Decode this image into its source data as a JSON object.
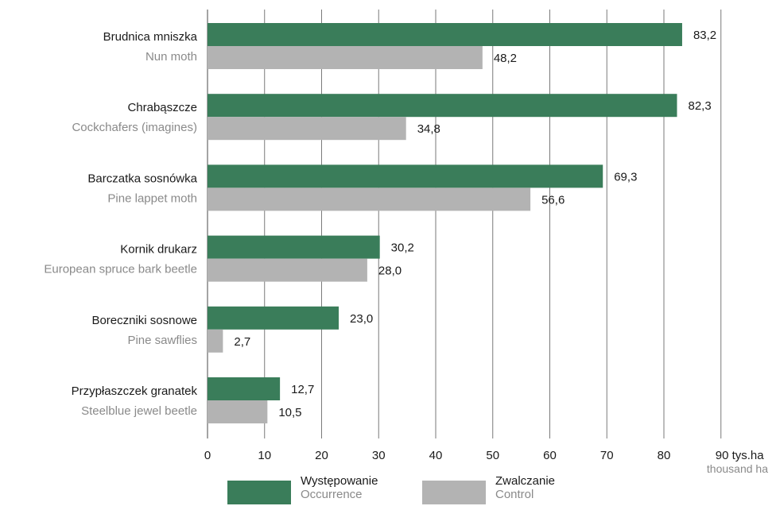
{
  "chart_data": {
    "type": "bar",
    "orientation": "horizontal",
    "categories": [
      {
        "pl": "Brudnica mniszka",
        "en": "Nun moth"
      },
      {
        "pl": "Chrabąszcze",
        "en": "Cockchafers (imagines)"
      },
      {
        "pl": "Barczatka sosnówka",
        "en": "Pine lappet moth"
      },
      {
        "pl": "Kornik drukarz",
        "en": "European spruce bark beetle"
      },
      {
        "pl": "Boreczniki sosnowe",
        "en": "Pine sawflies"
      },
      {
        "pl": "Przypłaszczek granatek",
        "en": "Steelblue jewel beetle"
      }
    ],
    "series": [
      {
        "name": "Występowanie",
        "name_en": "Occurrence",
        "color": "#3a7d5a",
        "values": [
          83.2,
          82.3,
          69.3,
          30.2,
          23.0,
          12.7
        ],
        "labels": [
          "83,2",
          "82,3",
          "69,3",
          "30,2",
          "23,0",
          "12,7"
        ]
      },
      {
        "name": "Zwalczanie",
        "name_en": "Control",
        "color": "#b3b3b3",
        "values": [
          48.2,
          34.8,
          56.6,
          28.0,
          2.7,
          10.5
        ],
        "labels": [
          "48,2",
          "34,8",
          "56,6",
          "28,0",
          "2,7",
          "10,5"
        ]
      }
    ],
    "xlim": [
      0,
      90
    ],
    "xticks": [
      0,
      10,
      20,
      30,
      40,
      50,
      60,
      70,
      80,
      90
    ],
    "xunit": "tys.ha",
    "xunit_en": "thousand ha",
    "grid": "vertical",
    "legend_position": "bottom"
  }
}
